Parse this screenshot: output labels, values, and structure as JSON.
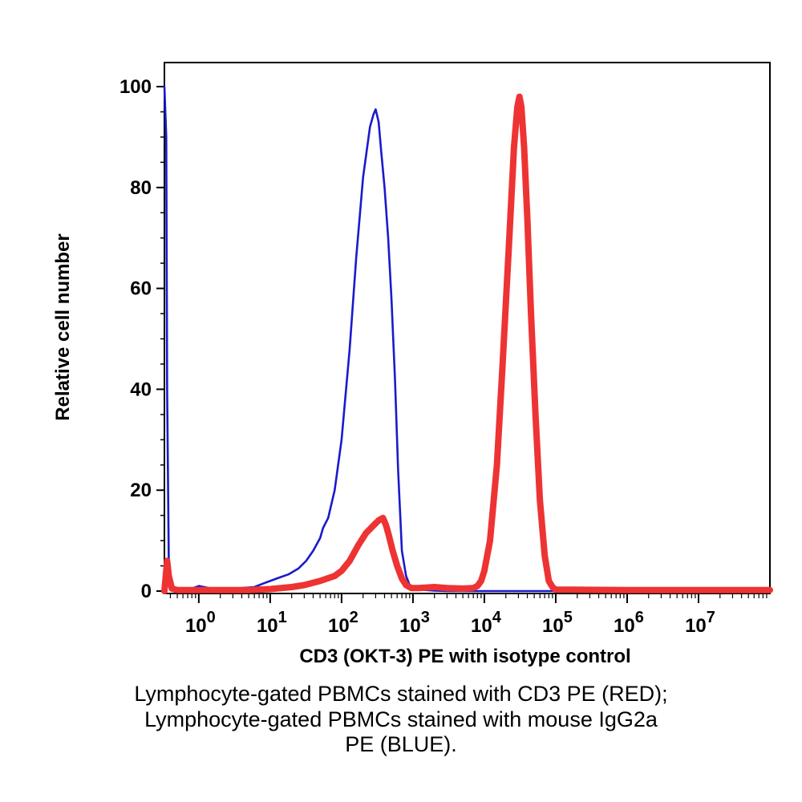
{
  "chart_data": {
    "type": "line",
    "title": "",
    "xlabel": "CD3 (OKT-3) PE with isotype control",
    "ylabel": "Relative cell number",
    "x_scale": "log",
    "xlim": [
      0.33,
      100000000
    ],
    "ylim": [
      0,
      100
    ],
    "x_ticks": [
      {
        "value": 1,
        "base": "10",
        "exp": "0"
      },
      {
        "value": 10,
        "base": "10",
        "exp": "1"
      },
      {
        "value": 100,
        "base": "10",
        "exp": "2"
      },
      {
        "value": 1000,
        "base": "10",
        "exp": "3"
      },
      {
        "value": 10000,
        "base": "10",
        "exp": "4"
      },
      {
        "value": 100000,
        "base": "10",
        "exp": "5"
      },
      {
        "value": 1000000,
        "base": "10",
        "exp": "6"
      },
      {
        "value": 10000000,
        "base": "10",
        "exp": "7"
      }
    ],
    "y_ticks": [
      {
        "value": 0,
        "label": "0"
      },
      {
        "value": 20,
        "label": "20"
      },
      {
        "value": 40,
        "label": "40"
      },
      {
        "value": 60,
        "label": "60"
      },
      {
        "value": 80,
        "label": "80"
      },
      {
        "value": 100,
        "label": "100"
      }
    ],
    "grid": false,
    "series": [
      {
        "color": "#1a1acc",
        "x": [
          0.33,
          0.35,
          0.36,
          0.38,
          0.4,
          0.5,
          0.7,
          0.8,
          1.0,
          1.2,
          1.5,
          2,
          3,
          4,
          6,
          8,
          10,
          13,
          18,
          25,
          32,
          40,
          50,
          55,
          65,
          80,
          100,
          130,
          160,
          200,
          250,
          280,
          300,
          330,
          360,
          400,
          450,
          500,
          560,
          620,
          700,
          800,
          900,
          1100,
          1500,
          2000,
          3000,
          10000,
          1000000,
          100000000
        ],
        "y": [
          100,
          90,
          40,
          5,
          0.5,
          0.3,
          0.2,
          0.5,
          1.0,
          0.8,
          0.5,
          0.4,
          0.3,
          0.6,
          0.8,
          1.5,
          2.0,
          2.6,
          3.3,
          4.5,
          6.0,
          8.0,
          10.5,
          12.5,
          14.5,
          20,
          30,
          48,
          66,
          82,
          92,
          94.5,
          95.5,
          93,
          87,
          80,
          70,
          58,
          42,
          24,
          8,
          3,
          1.2,
          0.4,
          0.2,
          0.1,
          0,
          0,
          0,
          0
        ]
      },
      {
        "color": "#ee3333",
        "x": [
          0.33,
          0.36,
          0.38,
          0.42,
          0.5,
          1,
          2,
          5,
          10,
          20,
          30,
          50,
          80,
          100,
          130,
          170,
          220,
          280,
          330,
          380,
          420,
          460,
          520,
          600,
          700,
          800,
          950,
          1200,
          2000,
          3000,
          5000,
          7000,
          8000,
          9000,
          10000,
          12000,
          15000,
          18000,
          22000,
          26000,
          29000,
          31000,
          33000,
          36000,
          40000,
          45000,
          52000,
          60000,
          70000,
          80000,
          90000,
          100000,
          1000000,
          100000000
        ],
        "y": [
          0,
          6,
          3,
          0.5,
          0.2,
          0.2,
          0.2,
          0.2,
          0.4,
          0.8,
          1.2,
          2.0,
          3.0,
          4.0,
          6.0,
          9.0,
          11.5,
          13,
          14,
          14.5,
          13,
          11,
          8,
          5,
          2.5,
          1.2,
          0.6,
          0.6,
          0.8,
          0.6,
          0.5,
          0.6,
          1.0,
          2.0,
          4.0,
          10,
          25,
          45,
          68,
          88,
          96,
          98,
          96,
          88,
          74,
          55,
          35,
          18,
          7,
          2,
          0.8,
          0.3,
          0.2,
          0.2
        ]
      }
    ]
  },
  "caption": {
    "line1": "Lymphocyte-gated PBMCs stained with CD3 PE (RED);",
    "line2": "Lymphocyte-gated PBMCs stained with mouse IgG2a",
    "line3": "PE (BLUE)."
  }
}
